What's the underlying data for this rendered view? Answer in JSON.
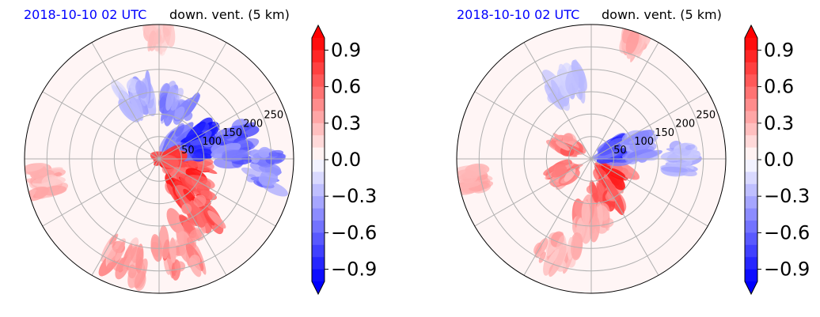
{
  "chart_data": [
    {
      "type": "heatmap",
      "projection": "polar",
      "title_left": "2018-10-10 02 UTC",
      "title_right": "down. vent. (5 km)",
      "radial_ticks": [
        50,
        100,
        150,
        200,
        250
      ],
      "r_max": 300,
      "angular_grid_deg": [
        0,
        30,
        60,
        90,
        120,
        150,
        180,
        210,
        240,
        270,
        300,
        330
      ],
      "grid": true,
      "colormap": "bwr",
      "value_range": [
        -1.0,
        1.0
      ],
      "features": [
        {
          "azimuth_deg": 120,
          "radius": 70,
          "value": 1.0,
          "spread": 55
        },
        {
          "azimuth_deg": 135,
          "radius": 110,
          "value": 1.0,
          "spread": 50
        },
        {
          "azimuth_deg": 150,
          "radius": 160,
          "value": 0.8,
          "spread": 55
        },
        {
          "azimuth_deg": 170,
          "radius": 220,
          "value": 0.6,
          "spread": 60
        },
        {
          "azimuth_deg": 200,
          "radius": 240,
          "value": 0.5,
          "spread": 60
        },
        {
          "azimuth_deg": 60,
          "radius": 60,
          "value": -1.0,
          "spread": 40
        },
        {
          "azimuth_deg": 70,
          "radius": 110,
          "value": -1.0,
          "spread": 45
        },
        {
          "azimuth_deg": 80,
          "radius": 170,
          "value": -0.8,
          "spread": 50
        },
        {
          "azimuth_deg": 95,
          "radius": 240,
          "value": -0.7,
          "spread": 50
        },
        {
          "azimuth_deg": 20,
          "radius": 130,
          "value": -0.6,
          "spread": 45
        },
        {
          "azimuth_deg": 340,
          "radius": 150,
          "value": -0.4,
          "spread": 45
        },
        {
          "azimuth_deg": 100,
          "radius": 20,
          "value": 1.0,
          "spread": 15
        },
        {
          "azimuth_deg": 0,
          "radius": 280,
          "value": 0.3,
          "spread": 30
        },
        {
          "azimuth_deg": 260,
          "radius": 260,
          "value": 0.4,
          "spread": 40
        }
      ]
    },
    {
      "type": "heatmap",
      "projection": "polar",
      "title_left": "2018-10-10 02 UTC",
      "title_right": "down. vent. (5 km)",
      "radial_ticks": [
        50,
        100,
        150,
        200,
        250
      ],
      "r_max": 300,
      "angular_grid_deg": [
        0,
        30,
        60,
        90,
        120,
        150,
        180,
        210,
        240,
        270,
        300,
        330
      ],
      "grid": true,
      "colormap": "bwr",
      "value_range": [
        -1.0,
        1.0
      ],
      "features": [
        {
          "azimuth_deg": 130,
          "radius": 60,
          "value": 1.0,
          "spread": 35
        },
        {
          "azimuth_deg": 160,
          "radius": 90,
          "value": 0.8,
          "spread": 35
        },
        {
          "azimuth_deg": 180,
          "radius": 140,
          "value": 0.5,
          "spread": 45
        },
        {
          "azimuth_deg": 200,
          "radius": 220,
          "value": 0.4,
          "spread": 55
        },
        {
          "azimuth_deg": 70,
          "radius": 50,
          "value": -1.0,
          "spread": 25
        },
        {
          "azimuth_deg": 75,
          "radius": 110,
          "value": -0.5,
          "spread": 35
        },
        {
          "azimuth_deg": 90,
          "radius": 200,
          "value": -0.4,
          "spread": 40
        },
        {
          "azimuth_deg": 340,
          "radius": 170,
          "value": -0.3,
          "spread": 45
        },
        {
          "azimuth_deg": 300,
          "radius": 60,
          "value": 0.7,
          "spread": 20
        },
        {
          "azimuth_deg": 260,
          "radius": 270,
          "value": 0.5,
          "spread": 30
        },
        {
          "azimuth_deg": 20,
          "radius": 280,
          "value": 0.4,
          "spread": 25
        },
        {
          "azimuth_deg": 240,
          "radius": 70,
          "value": 0.6,
          "spread": 20
        }
      ]
    }
  ],
  "colorbars": [
    {
      "colormap": "bwr",
      "min": -1.0,
      "max": 1.0,
      "n_levels": 20,
      "extend": "both",
      "tick_labels": [
        "0.9",
        "0.6",
        "0.3",
        "0.0",
        "−0.3",
        "−0.6",
        "−0.9"
      ],
      "tick_values": [
        0.9,
        0.6,
        0.3,
        0.0,
        -0.3,
        -0.6,
        -0.9
      ]
    },
    {
      "colormap": "bwr",
      "min": -1.0,
      "max": 1.0,
      "n_levels": 20,
      "extend": "both",
      "tick_labels": [
        "0.9",
        "0.6",
        "0.3",
        "0.0",
        "−0.3",
        "−0.6",
        "−0.9"
      ],
      "tick_values": [
        0.9,
        0.6,
        0.3,
        0.0,
        -0.3,
        -0.6,
        -0.9
      ]
    }
  ],
  "colors": {
    "title_date": "#0000ff",
    "grid": "#b0b0b0",
    "frame": "#000000"
  }
}
